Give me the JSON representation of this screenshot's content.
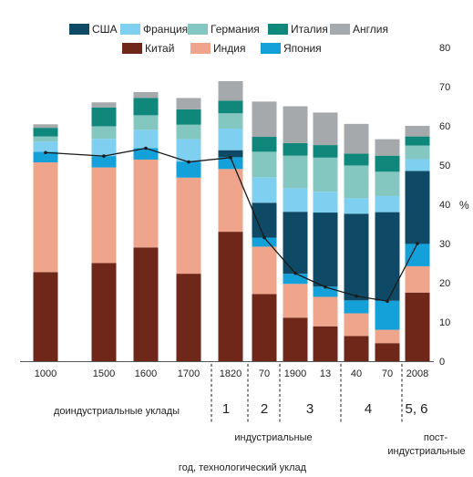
{
  "chart_data": {
    "type": "bar",
    "stacked": true,
    "categories": [
      "1000",
      "1500",
      "1600",
      "1700",
      "1820",
      "70",
      "1900",
      "13",
      "40",
      "70",
      "2008"
    ],
    "yunit": "%",
    "ylim": [
      0,
      80
    ],
    "yticks": [
      0,
      10,
      20,
      30,
      40,
      50,
      60,
      70,
      80
    ],
    "grid": false,
    "series": [
      {
        "name": "Китай",
        "key": "china",
        "color": "#6e2718",
        "values": [
          22.7,
          25.0,
          29.0,
          22.3,
          33.0,
          17.1,
          11.1,
          8.9,
          6.4,
          4.6,
          17.5
        ]
      },
      {
        "name": "Индия",
        "key": "india",
        "color": "#efa58c",
        "values": [
          28.0,
          24.4,
          22.4,
          24.5,
          16.0,
          12.1,
          8.6,
          7.5,
          5.8,
          3.4,
          6.7
        ]
      },
      {
        "name": "Япония",
        "key": "japan",
        "color": "#14a0d8",
        "values": [
          2.7,
          2.9,
          2.9,
          4.1,
          3.0,
          2.3,
          2.6,
          2.6,
          3.3,
          7.4,
          5.7
        ]
      },
      {
        "name": "США",
        "key": "usa",
        "color": "#0e4a66",
        "values": [
          0,
          0,
          0,
          0,
          1.8,
          8.9,
          15.8,
          18.9,
          22.1,
          22.6,
          18.6
        ]
      },
      {
        "name": "Франция",
        "key": "france",
        "color": "#7fcff0",
        "values": [
          2.6,
          4.4,
          4.7,
          5.7,
          5.5,
          6.5,
          6.0,
          5.3,
          4.0,
          4.1,
          3.0
        ]
      },
      {
        "name": "Германия",
        "key": "germany",
        "color": "#84c7c1",
        "values": [
          1.3,
          3.2,
          3.7,
          3.7,
          3.9,
          6.5,
          8.3,
          8.7,
          8.3,
          6.2,
          3.5
        ]
      },
      {
        "name": "Италия",
        "key": "italy",
        "color": "#0f877a",
        "values": [
          2.2,
          4.8,
          4.4,
          3.9,
          3.2,
          3.8,
          3.2,
          3.2,
          3.0,
          4.1,
          2.3
        ]
      },
      {
        "name": "Англия",
        "key": "england",
        "color": "#a6a9ab",
        "values": [
          0.9,
          1.3,
          1.5,
          2.9,
          5.0,
          9.0,
          9.4,
          8.3,
          7.6,
          4.2,
          2.7
        ]
      }
    ],
    "line": {
      "values": [
        53.2,
        52.3,
        54.3,
        50.8,
        51.9,
        31.5,
        22.4,
        18.9,
        16.6,
        15.3,
        30.0
      ]
    },
    "x_groups": [
      {
        "label": "доиндустриальные уклады",
        "from": 0,
        "to": 3
      },
      {
        "label": "1",
        "from": 4,
        "to": 4
      },
      {
        "label": "2",
        "from": 5,
        "to": 5
      },
      {
        "label": "3",
        "from": 6,
        "to": 7
      },
      {
        "label": "4",
        "from": 8,
        "to": 9
      },
      {
        "label": "5, 6",
        "from": 10,
        "to": 10
      }
    ],
    "era_labels": {
      "industrial": "индустриальные",
      "postindustrial_line1": "пост-",
      "postindustrial_line2": "индустриальные"
    },
    "xlabel": "год, технологический уклад",
    "ylabel": "%",
    "legend_position": "top",
    "legend_rows": [
      [
        "usa",
        "france",
        "germany",
        "italy",
        "england"
      ],
      [
        "china",
        "india",
        "japan"
      ]
    ]
  }
}
